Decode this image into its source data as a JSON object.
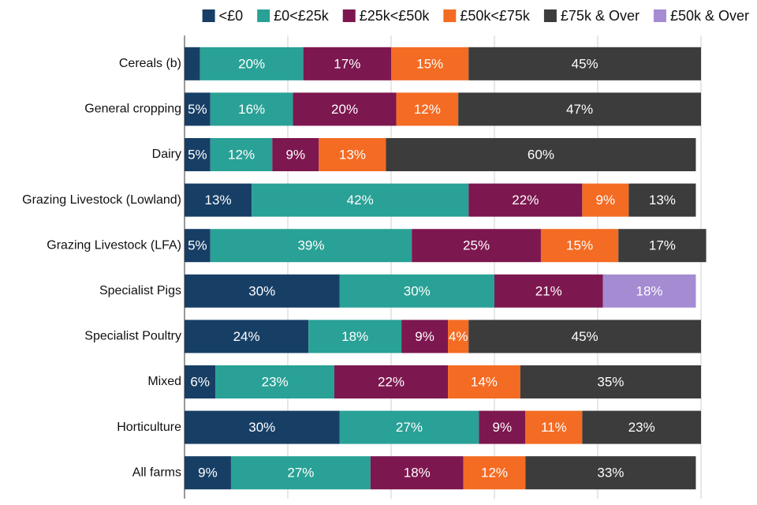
{
  "chart_data": {
    "type": "stacked_barh",
    "categories": [
      "Cereals (b)",
      "General cropping",
      "Dairy",
      "Grazing Livestock (Lowland)",
      "Grazing Livestock (LFA)",
      "Specialist Pigs",
      "Specialist Poultry",
      "Mixed",
      "Horticulture",
      "All farms"
    ],
    "series": [
      {
        "name": "<£0",
        "color": "#173f66",
        "values": [
          3,
          5,
          5,
          13,
          5,
          30,
          24,
          6,
          30,
          9
        ],
        "value_labels": [
          null,
          "5%",
          "5%",
          "13%",
          "5%",
          "30%",
          "24%",
          "6%",
          "30%",
          "9%"
        ]
      },
      {
        "name": "£0<£25k",
        "color": "#29a196",
        "values": [
          20,
          16,
          12,
          42,
          39,
          30,
          18,
          23,
          27,
          27
        ],
        "value_labels": [
          "20%",
          "16%",
          "12%",
          "42%",
          "39%",
          "30%",
          "18%",
          "23%",
          "27%",
          "27%"
        ]
      },
      {
        "name": "£25k<£50k",
        "color": "#7d174f",
        "values": [
          17,
          20,
          9,
          22,
          25,
          21,
          9,
          22,
          9,
          18
        ],
        "value_labels": [
          "17%",
          "20%",
          "9%",
          "22%",
          "25%",
          "21%",
          "9%",
          "22%",
          "9%",
          "18%"
        ]
      },
      {
        "name": "£50k<£75k",
        "color": "#f46b23",
        "values": [
          15,
          12,
          13,
          9,
          15,
          null,
          4,
          14,
          11,
          12
        ],
        "value_labels": [
          "15%",
          "12%",
          "13%",
          "9%",
          "15%",
          null,
          "4%",
          "14%",
          "11%",
          "12%"
        ]
      },
      {
        "name": "£75k & Over",
        "color": "#3c3c3c",
        "values": [
          45,
          47,
          60,
          13,
          17,
          null,
          45,
          35,
          23,
          33
        ],
        "value_labels": [
          "45%",
          "47%",
          "60%",
          "13%",
          "17%",
          null,
          "45%",
          "35%",
          "23%",
          "33%"
        ]
      },
      {
        "name": "£50k & Over",
        "color": "#a48bd2",
        "values": [
          null,
          null,
          null,
          null,
          null,
          18,
          null,
          null,
          null,
          null
        ],
        "value_labels": [
          null,
          null,
          null,
          null,
          null,
          "18%",
          null,
          null,
          null,
          null
        ]
      }
    ],
    "xlim": [
      0,
      100
    ],
    "xticks": [
      0,
      20,
      40,
      60,
      80,
      100
    ],
    "grid": true
  }
}
